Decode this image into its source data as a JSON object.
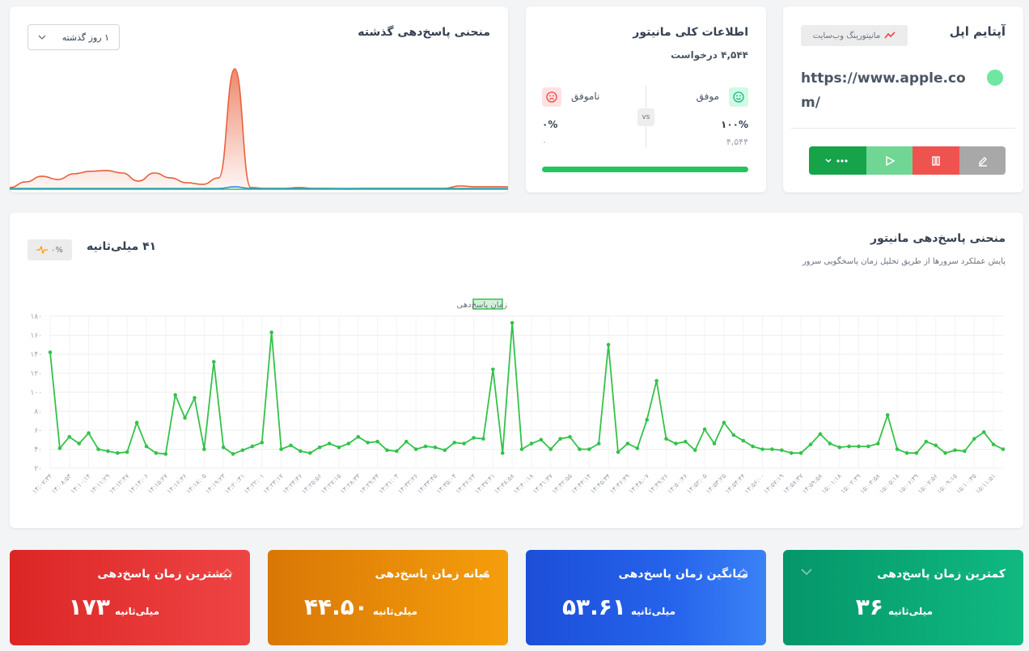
{
  "uptime_card": {
    "title": "آپتایم اپل",
    "badge": "مانیتورینگ وب‌سایت",
    "url": "https://www.apple.com/"
  },
  "overview_card": {
    "title": "اطلاعات کلی مانیتور",
    "requests": "۴,۵۴۴ درخواست",
    "success_label": "موفق",
    "failure_label": "ناموفق",
    "vs": "vs",
    "success_percent": "۱۰۰%",
    "failure_percent": "۰%",
    "success_count": "۴,۵۴۴",
    "failure_count": "۰"
  },
  "history_card": {
    "title": "منحنی پاسخ‌دهی گذشته",
    "range": "۱ روز گذشته"
  },
  "monitor_card": {
    "title": "منحنی پاسخ‌دهی مانیتور",
    "subtitle": "پایش عملکرد سرورها از طریق تحلیل زمان پاسخگویی سرور",
    "current": "۴۱ میلی‌ثانیه",
    "change": "۰%"
  },
  "stats": [
    {
      "title": "کمترین زمان پاسخ‌دهی",
      "value": "۳۶",
      "unit": "میلی‌ثانیه"
    },
    {
      "title": "میانگین زمان پاسخ‌دهی",
      "value": "۵۳.۶۱",
      "unit": "میلی‌ثانیه"
    },
    {
      "title": "میانه زمان پاسخ‌دهی",
      "value": "۴۴.۵۰",
      "unit": "میلی‌ثانیه"
    },
    {
      "title": "بیشترین زمان پاسخ‌دهی",
      "value": "۱۷۳",
      "unit": "میلی‌ثانیه"
    }
  ],
  "chart_data": [
    {
      "type": "line",
      "grid": true,
      "legend": "top",
      "ylim": [
        20,
        180
      ],
      "yticks": [
        {
          "value": 20,
          "label": "۲۰"
        },
        {
          "value": 40,
          "label": "۴۰"
        },
        {
          "value": 60,
          "label": "۶۰"
        },
        {
          "value": 80,
          "label": "۸۰"
        },
        {
          "value": 100,
          "label": "۱۰۰"
        },
        {
          "value": 120,
          "label": "۱۲۰"
        },
        {
          "value": 140,
          "label": "۱۴۰"
        },
        {
          "value": 160,
          "label": "۱۶۰"
        },
        {
          "value": 180,
          "label": "۱۸۰"
        }
      ],
      "categories": [
        "۱۴:۰۷:۳۴",
        null,
        "۱۴:۰۸:۵۴",
        null,
        "۱۴:۱۰:۱۴",
        null,
        "۱۴:۱۱:۲۹",
        null,
        "۱۴:۱۲:۴۷",
        null,
        "۱۴:۱۴:۰۶",
        null,
        "۱۴:۱۵:۲۷",
        null,
        "۱۴:۱۶:۴۶",
        null,
        "۱۴:۱۸:۰۵",
        null,
        "۱۴:۱۹:۲۳",
        null,
        "۱۴:۲۰:۴۱",
        null,
        "۱۴:۲۲:۰۱",
        null,
        "۱۴:۲۳:۱۷",
        null,
        "۱۴:۲۴:۳۶",
        null,
        "۱۴:۲۵:۵۶",
        null,
        "۱۴:۲۷:۱۵",
        null,
        "۱۴:۲۸:۳۳",
        null,
        "۱۴:۲۹:۴۴",
        null,
        "۱۴:۳۱:۰۴",
        null,
        "۱۴:۳۲:۲۶",
        null,
        "۱۴:۳۳:۴۵",
        null,
        "۱۴:۳۵:۰۴",
        null,
        "۱۴:۳۶:۲۴",
        null,
        "۱۴:۳۷:۴۱",
        null,
        "۱۴:۳۸:۵۸",
        null,
        "۱۴:۴۰:۱۸",
        null,
        "۱۴:۴۱:۳۷",
        null,
        "۱۴:۴۲:۵۵",
        null,
        "۱۴:۴۴:۱۴",
        null,
        "۱۴:۴۵:۳۴",
        null,
        "۱۴:۴۶:۴۹",
        null,
        "۱۴:۴۸:۰۷",
        null,
        "۱۴:۴۹:۲۶",
        null,
        "۱۴:۵۰:۴۶",
        null,
        "۱۴:۵۲:۰۵",
        null,
        "۱۴:۵۳:۲۵",
        null,
        "۱۴:۵۴:۴۴",
        null,
        "۱۴:۵۶:۰۰",
        null,
        "۱۴:۵۷:۱۹",
        null,
        "۱۴:۵۸:۳۷",
        null,
        "۱۴:۵۹:۵۸",
        null,
        "۱۵:۰۱:۱۸",
        null,
        "۱۵:۰۲:۳۹",
        null,
        "۱۵:۰۳:۵۸",
        null,
        "۱۵:۰۵:۱۸",
        null,
        "۱۵:۰۶:۳۹",
        null,
        "۱۵:۰۷:۵۶",
        null,
        "۱۵:۰۹:۱۵",
        null,
        "۱۵:۱۰:۳۵",
        null,
        "۱۵:۱۱:۵۱",
        null
      ],
      "series": [
        {
          "name": "زمان پاسخ‌دهی",
          "color": "#34c24a",
          "values": [
            142,
            41,
            53,
            46,
            57,
            40,
            38,
            36,
            37,
            68,
            43,
            36,
            35,
            97,
            73,
            94,
            40,
            132,
            42,
            35,
            39,
            43,
            47,
            163,
            40,
            44,
            38,
            36,
            42,
            46,
            42,
            46,
            53,
            47,
            48,
            39,
            38,
            48,
            40,
            43,
            42,
            39,
            47,
            46,
            52,
            51,
            124,
            36,
            173,
            40,
            46,
            50,
            40,
            51,
            53,
            40,
            40,
            46,
            150,
            37,
            46,
            41,
            71,
            112,
            51,
            46,
            48,
            39,
            61,
            46,
            68,
            55,
            49,
            43,
            40,
            40,
            39,
            36,
            36,
            45,
            56,
            46,
            42,
            43,
            43,
            43,
            46,
            76,
            40,
            36,
            36,
            48,
            44,
            36,
            39,
            38,
            51,
            58,
            45,
            40
          ]
        }
      ]
    },
    {
      "type": "area",
      "series": [
        {
          "color": "#e8613c",
          "values": [
            2,
            9,
            16,
            12,
            19,
            22,
            23,
            20,
            10,
            20,
            14,
            8,
            6,
            14,
            148,
            2,
            1,
            1,
            2,
            1,
            1,
            0,
            1,
            1,
            1,
            1,
            1,
            1,
            4,
            3,
            3,
            3
          ]
        },
        {
          "color": "#3b82f6",
          "values": [
            1,
            1,
            1,
            1,
            1,
            1,
            1,
            1,
            1,
            1,
            1,
            1,
            1,
            1,
            3,
            1,
            1,
            1,
            1,
            1,
            1,
            1,
            1,
            1,
            1,
            1,
            1,
            1,
            1,
            1,
            1,
            1
          ]
        },
        {
          "color": "#22c55e",
          "values": [
            0,
            0,
            0,
            0,
            0,
            0,
            0,
            0,
            0,
            0,
            0,
            0,
            0,
            0,
            0,
            0,
            0,
            0,
            0,
            0,
            0,
            0,
            0,
            0,
            0,
            0,
            0,
            0,
            0,
            0,
            0,
            0
          ]
        }
      ]
    }
  ]
}
